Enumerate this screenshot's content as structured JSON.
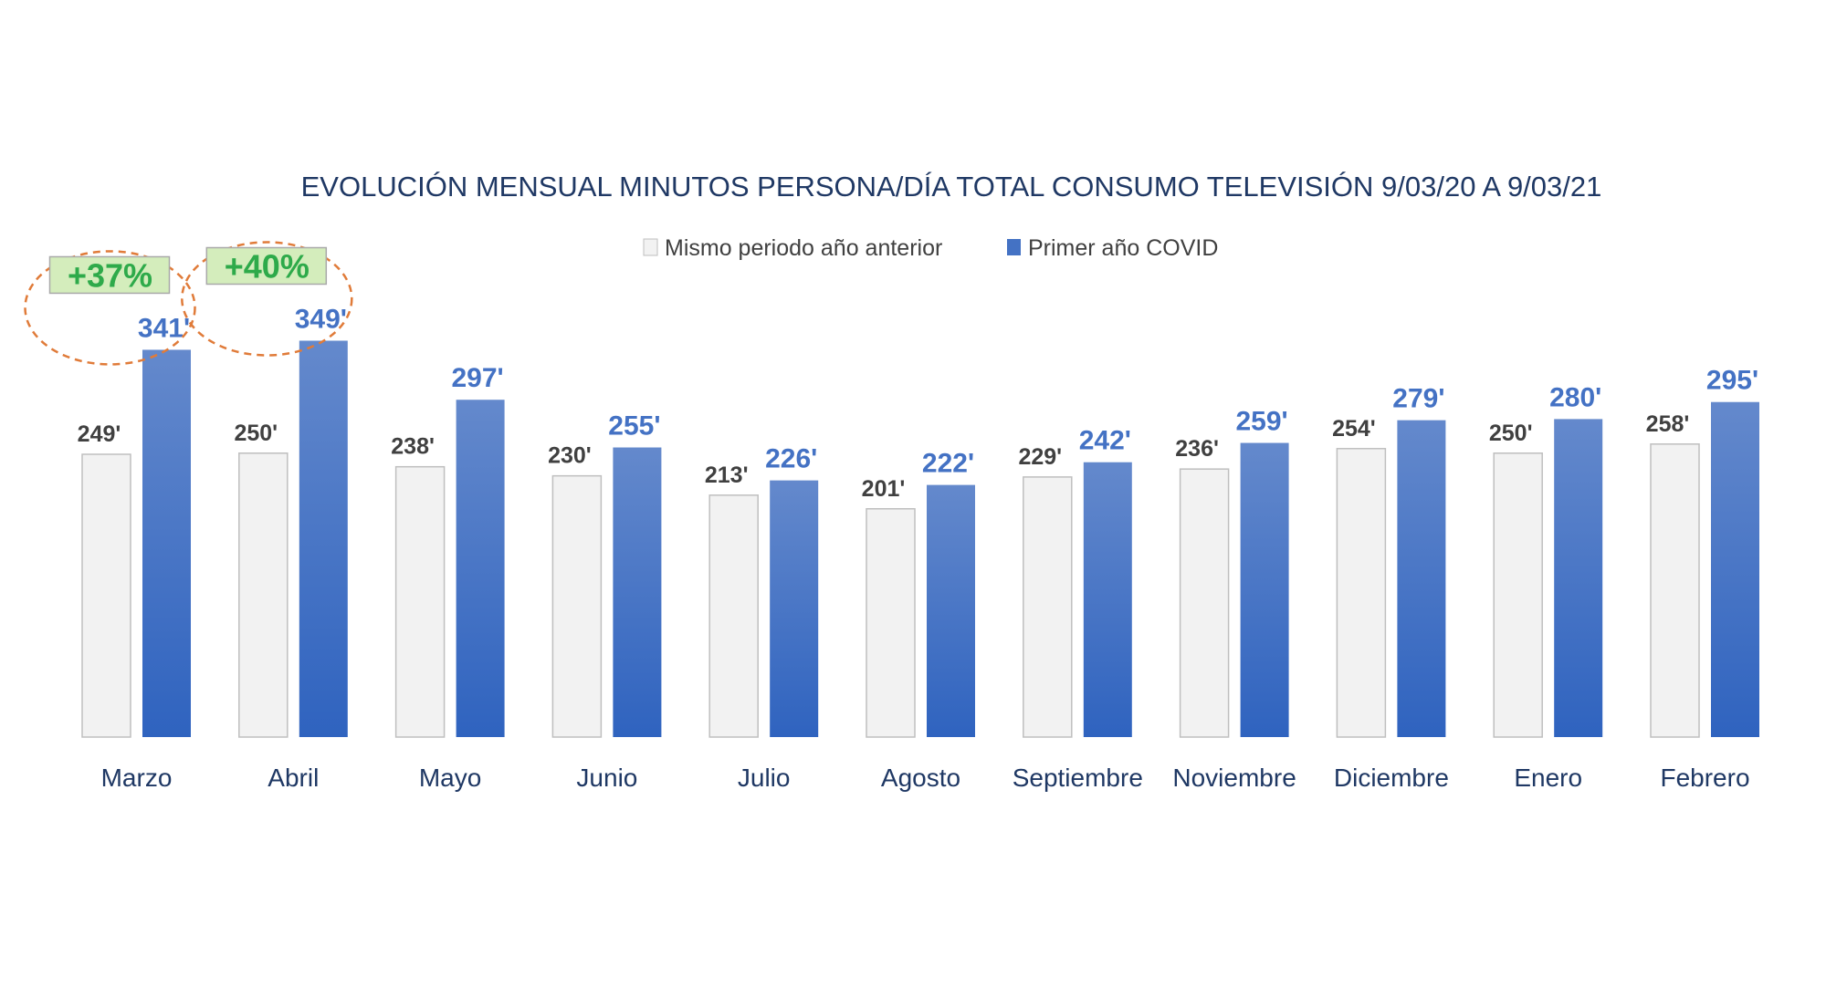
{
  "chart_data": {
    "type": "bar",
    "title": "EVOLUCIÓN MENSUAL MINUTOS PERSONA/DÍA TOTAL CONSUMO TELEVISIÓN 9/03/20  A 9/03/21",
    "categories": [
      "Marzo",
      "Abril",
      "Mayo",
      "Junio",
      "Julio",
      "Agosto",
      "Septiembre",
      "Noviembre",
      "Diciembre",
      "Enero",
      "Febrero"
    ],
    "series": [
      {
        "name": "Mismo periodo año anterior",
        "color": "#f2f2f2",
        "values": [
          249,
          250,
          238,
          230,
          213,
          201,
          229,
          236,
          254,
          250,
          258
        ],
        "labels": [
          "249'",
          "250'",
          "238'",
          "230'",
          "213'",
          "201'",
          "229'",
          "236'",
          "254'",
          "250'",
          "258'"
        ]
      },
      {
        "name": "Primer año COVID",
        "color": "#4472c4",
        "values": [
          341,
          349,
          297,
          255,
          226,
          222,
          242,
          259,
          279,
          280,
          295
        ],
        "labels": [
          "341'",
          "349'",
          "297'",
          "255'",
          "226'",
          "222'",
          "242'",
          "259'",
          "279'",
          "280'",
          "295'"
        ]
      }
    ],
    "annotations": [
      {
        "category": "Marzo",
        "text": "+37%",
        "color": "#2eaa4a"
      },
      {
        "category": "Abril",
        "text": "+40%",
        "color": "#2eaa4a"
      }
    ],
    "ylim": [
      0,
      400
    ],
    "legend_position": "top-center",
    "grid": false,
    "xlabel": "",
    "ylabel": ""
  }
}
